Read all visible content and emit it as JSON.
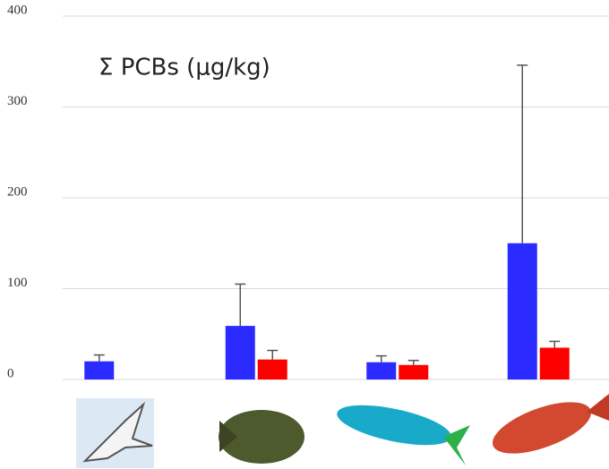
{
  "chart_data": {
    "type": "bar",
    "title": "Σ PCBs (μg/kg)",
    "categories": [
      null,
      null,
      null,
      null
    ],
    "series": [
      {
        "color": "#2b2bff",
        "values": [
          20,
          59,
          19,
          150
        ],
        "errors": [
          7,
          46,
          7,
          196
        ]
      },
      {
        "color": "#ff0000",
        "values": [
          null,
          22,
          16,
          35
        ],
        "errors": [
          null,
          10,
          5,
          7
        ]
      }
    ],
    "ylim": [
      0,
      400
    ],
    "yticks": [
      0,
      100,
      200,
      300,
      400
    ],
    "grid": true
  }
}
